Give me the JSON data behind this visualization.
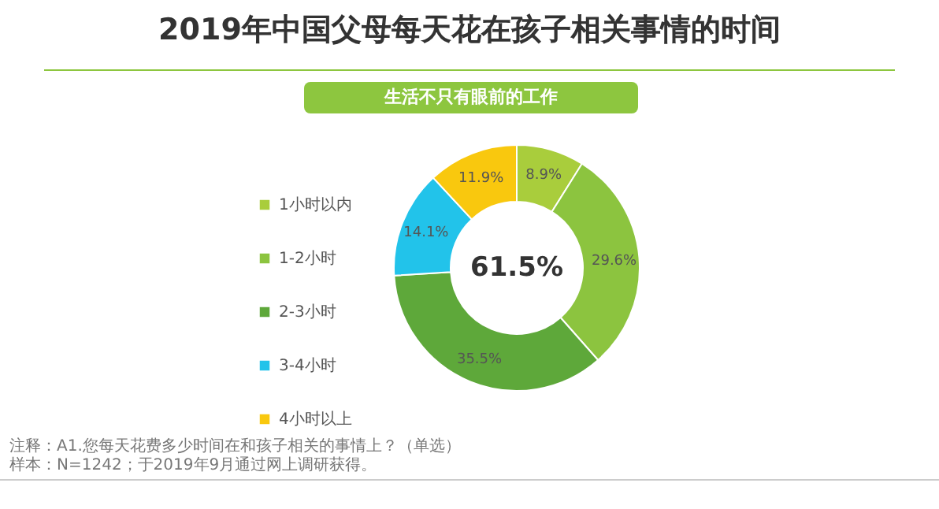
{
  "chart_data": {
    "type": "donut",
    "title": "2019年中国父母每天花在孩子相关事情的时间",
    "subtitle": "生活不只有眼前的工作",
    "categories": [
      "1小时以内",
      "1-2小时",
      "2-3小时",
      "3-4小时",
      "4小时以上"
    ],
    "values": [
      8.9,
      29.6,
      35.5,
      14.1,
      11.9
    ],
    "value_labels": [
      "8.9%",
      "29.6%",
      "35.5%",
      "14.1%",
      "11.9%"
    ],
    "colors": [
      "#a9cd3c",
      "#8cc43f",
      "#5ea83a",
      "#22c3ea",
      "#f9c80e"
    ],
    "legend": "left",
    "annotations": [
      "61.5%",
      "注释：A1.您每天花费多少时间在和孩子相关的事情上？（单选）",
      "样本：N=1242；于2019年9月通过网上调研获得。"
    ]
  }
}
